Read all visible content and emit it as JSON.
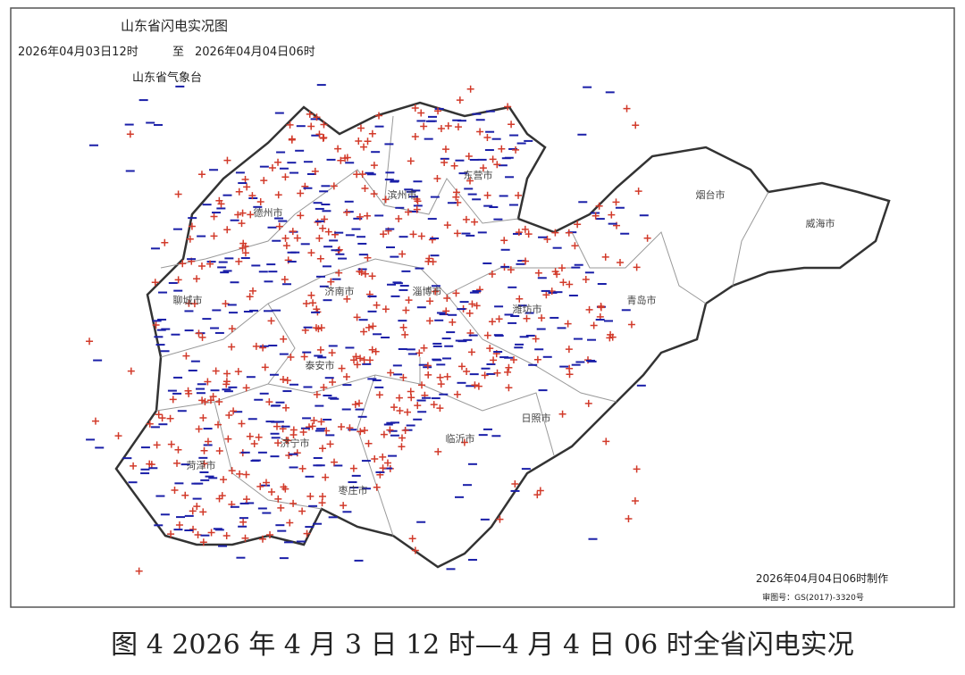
{
  "header": {
    "title": "山东省闪电实况图",
    "time_start": "2026年04月03日12时",
    "to": "至",
    "time_end": "2026年04月04日06时",
    "agency": "山东省气象台"
  },
  "cities": [
    "滨州市",
    "东营市",
    "烟台市",
    "威海市",
    "德州市",
    "济南市",
    "淄博市",
    "潍坊市",
    "青岛市",
    "聊城市",
    "泰安市",
    "日照市",
    "临沂市",
    "济宁市",
    "菏泽市",
    "枣庄市"
  ],
  "footer": {
    "made": "2026年04月04日06时制作",
    "approval": "审图号：GS(2017)-3320号"
  },
  "caption": "图 4 2026 年 4 月 3 日 12 时—4 月 4 日 06 时全省闪电实况"
}
